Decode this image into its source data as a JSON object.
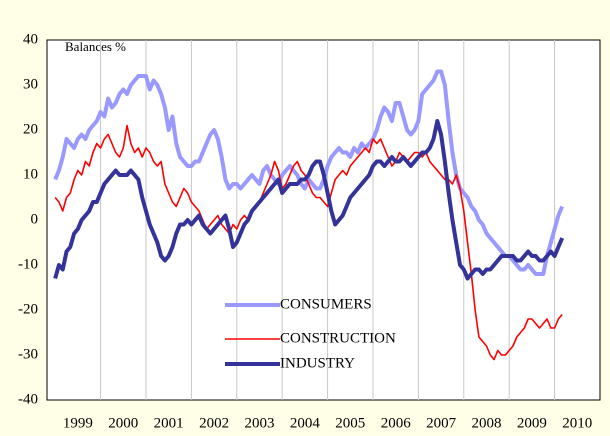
{
  "chart_data": {
    "type": "line",
    "annotation": "Balances %",
    "x": [
      1999,
      1999.083,
      1999.167,
      1999.25,
      1999.333,
      1999.417,
      1999.5,
      1999.583,
      1999.667,
      1999.75,
      1999.833,
      1999.917,
      2000,
      2000.083,
      2000.167,
      2000.25,
      2000.333,
      2000.417,
      2000.5,
      2000.583,
      2000.667,
      2000.75,
      2000.833,
      2000.917,
      2001,
      2001.083,
      2001.167,
      2001.25,
      2001.333,
      2001.417,
      2001.5,
      2001.583,
      2001.667,
      2001.75,
      2001.833,
      2001.917,
      2002,
      2002.083,
      2002.167,
      2002.25,
      2002.333,
      2002.417,
      2002.5,
      2002.583,
      2002.667,
      2002.75,
      2002.833,
      2002.917,
      2003,
      2003.083,
      2003.167,
      2003.25,
      2003.333,
      2003.417,
      2003.5,
      2003.583,
      2003.667,
      2003.75,
      2003.833,
      2003.917,
      2004,
      2004.083,
      2004.167,
      2004.25,
      2004.333,
      2004.417,
      2004.5,
      2004.583,
      2004.667,
      2004.75,
      2004.833,
      2004.917,
      2005,
      2005.083,
      2005.167,
      2005.25,
      2005.333,
      2005.417,
      2005.5,
      2005.583,
      2005.667,
      2005.75,
      2005.833,
      2005.917,
      2006,
      2006.083,
      2006.167,
      2006.25,
      2006.333,
      2006.417,
      2006.5,
      2006.583,
      2006.667,
      2006.75,
      2006.833,
      2006.917,
      2007,
      2007.083,
      2007.167,
      2007.25,
      2007.333,
      2007.417,
      2007.5,
      2007.583,
      2007.667,
      2007.75,
      2007.833,
      2007.917,
      2008,
      2008.083,
      2008.167,
      2008.25,
      2008.333,
      2008.417,
      2008.5,
      2008.583,
      2008.667,
      2008.75,
      2008.833,
      2008.917,
      2009,
      2009.083,
      2009.167,
      2009.25,
      2009.333,
      2009.417,
      2009.5,
      2009.583,
      2009.667,
      2009.75,
      2009.833,
      2009.917,
      2010,
      2010.083,
      2010.167
    ],
    "series": [
      {
        "name": "CONSUMERS",
        "color": "#9999ff",
        "width": 4,
        "values": [
          9,
          11,
          14,
          18,
          17,
          16,
          18,
          19,
          18,
          20,
          21,
          22,
          24,
          23,
          27,
          25,
          26,
          28,
          29,
          28,
          30,
          31,
          32,
          32,
          32,
          29,
          31,
          30,
          28,
          25,
          20,
          23,
          17,
          14,
          13,
          12,
          12,
          13,
          13,
          15,
          17,
          19,
          20,
          18,
          14,
          9,
          7,
          8,
          8,
          7,
          8,
          9,
          10,
          9,
          8,
          11,
          12,
          10,
          9,
          8,
          10,
          11,
          12,
          11,
          10,
          8,
          7,
          9,
          8,
          7,
          7,
          9,
          12,
          14,
          15,
          16,
          15,
          15,
          14,
          16,
          15,
          17,
          16,
          17,
          18,
          20,
          23,
          25,
          24,
          22,
          26,
          26,
          23,
          20,
          19,
          20,
          22,
          28,
          29,
          30,
          31,
          33,
          33,
          30,
          22,
          15,
          10,
          7,
          6,
          5,
          3,
          2,
          0,
          -1,
          -3,
          -4,
          -5,
          -6,
          -7,
          -8,
          -8,
          -9,
          -10,
          -11,
          -11,
          -10,
          -11,
          -12,
          -12,
          -12,
          -8,
          -5,
          -2,
          1,
          3
        ]
      },
      {
        "name": "CONSTRUCTION",
        "color": "#ff0000",
        "width": 1.6,
        "values": [
          5,
          4,
          2,
          5,
          6,
          9,
          11,
          10,
          13,
          12,
          15,
          17,
          16,
          18,
          19,
          17,
          15,
          14,
          16,
          21,
          17,
          15,
          16,
          14,
          16,
          15,
          13,
          12,
          13,
          8,
          6,
          4,
          3,
          5,
          7,
          6,
          4,
          3,
          2,
          0,
          -2,
          -1,
          0,
          1,
          -1,
          -2,
          -3,
          -1,
          -2,
          0,
          1,
          0,
          2,
          3,
          4,
          6,
          8,
          10,
          13,
          11,
          7,
          8,
          10,
          12,
          13,
          11,
          10,
          8,
          6,
          5,
          5,
          4,
          3,
          6,
          9,
          10,
          11,
          10,
          12,
          13,
          14,
          15,
          16,
          15,
          18,
          17,
          18,
          16,
          14,
          12,
          13,
          15,
          14,
          13,
          14,
          15,
          15,
          14,
          15,
          13,
          12,
          11,
          10,
          9,
          9,
          8,
          10,
          7,
          2,
          -5,
          -12,
          -20,
          -26,
          -27,
          -28,
          -30,
          -31,
          -29,
          -30,
          -30,
          -29,
          -28,
          -26,
          -25,
          -24,
          -22,
          -22,
          -23,
          -24,
          -23,
          -22,
          -24,
          -24,
          -22,
          -21
        ]
      },
      {
        "name": "INDUSTRY",
        "color": "#333399",
        "width": 4,
        "values": [
          -13,
          -10,
          -11,
          -7,
          -6,
          -3,
          -2,
          0,
          1,
          2,
          4,
          4,
          6,
          8,
          9,
          10,
          11,
          10,
          10,
          10,
          11,
          10,
          9,
          5,
          2,
          -1,
          -3,
          -5,
          -8,
          -9,
          -8,
          -6,
          -3,
          -1,
          -1,
          0,
          -1,
          0,
          1,
          -1,
          -2,
          -3,
          -2,
          -1,
          0,
          1,
          -2,
          -6,
          -5,
          -3,
          -1,
          0,
          2,
          3,
          4,
          5,
          6,
          7,
          8,
          9,
          6,
          7,
          8,
          8,
          8,
          9,
          9,
          10,
          12,
          13,
          13,
          10,
          6,
          2,
          -1,
          0,
          1,
          3,
          5,
          6,
          7,
          8,
          9,
          10,
          12,
          13,
          13,
          12,
          13,
          14,
          13,
          13,
          14,
          13,
          12,
          13,
          14,
          15,
          15,
          16,
          18,
          22,
          19,
          13,
          6,
          0,
          -5,
          -10,
          -11,
          -13,
          -12,
          -11,
          -11,
          -12,
          -11,
          -11,
          -10,
          -9,
          -8,
          -8,
          -8,
          -8,
          -9,
          -9,
          -8,
          -7,
          -8,
          -8,
          -9,
          -9,
          -8,
          -7,
          -8,
          -6,
          -4
        ]
      }
    ],
    "xlim": [
      1998.82,
      2011
    ],
    "xticks": [
      {
        "value": 1999.5,
        "label": "1999"
      },
      {
        "value": 2000.5,
        "label": "2000"
      },
      {
        "value": 2001.5,
        "label": "2001"
      },
      {
        "value": 2002.5,
        "label": "2002"
      },
      {
        "value": 2003.5,
        "label": "2003"
      },
      {
        "value": 2004.5,
        "label": "2004"
      },
      {
        "value": 2005.5,
        "label": "2005"
      },
      {
        "value": 2006.5,
        "label": "2006"
      },
      {
        "value": 2007.5,
        "label": "2007"
      },
      {
        "value": 2008.5,
        "label": "2008"
      },
      {
        "value": 2009.5,
        "label": "2009"
      },
      {
        "value": 2010.5,
        "label": "2010"
      }
    ],
    "xgrid": [
      2000,
      2001,
      2002,
      2003,
      2004,
      2005,
      2006,
      2007,
      2008,
      2009,
      2010
    ],
    "ylim": [
      -40,
      40
    ],
    "yticks": [
      -40,
      -30,
      -20,
      -10,
      0,
      10,
      20,
      30,
      40
    ],
    "legend": "lower center"
  }
}
